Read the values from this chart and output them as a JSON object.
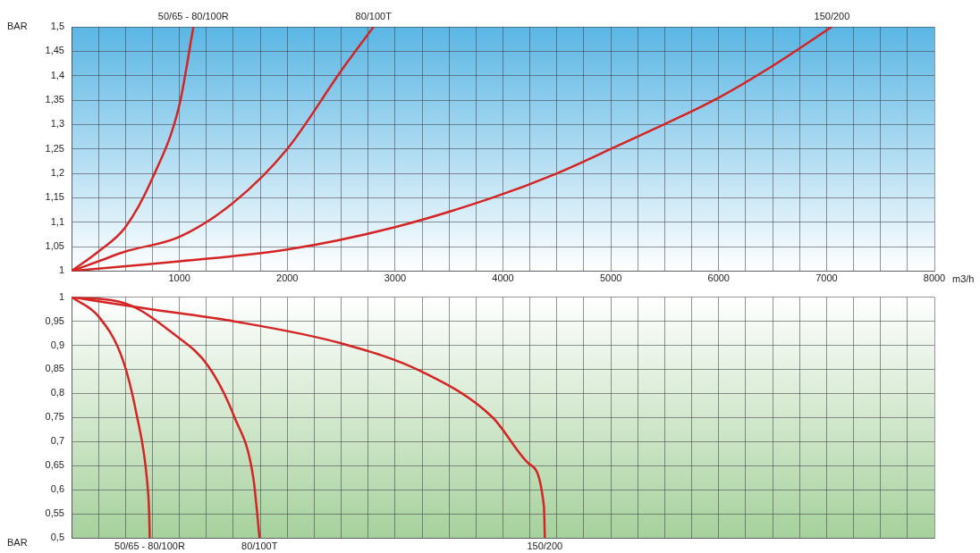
{
  "chart_data": [
    {
      "type": "line",
      "xlabel": "m3/h",
      "ylabel": "BAR",
      "xlim": [
        0,
        8000
      ],
      "ylim": [
        1,
        1.5
      ],
      "grid": true,
      "legend": false,
      "marker": "none",
      "line_style": "solid",
      "xticks": [
        {
          "value": 0,
          "label": null
        },
        {
          "value": 250,
          "label": null
        },
        {
          "value": 500,
          "label": null
        },
        {
          "value": 750,
          "label": null
        },
        1000,
        {
          "value": 1250,
          "label": null
        },
        {
          "value": 1500,
          "label": null
        },
        {
          "value": 1750,
          "label": null
        },
        2000,
        {
          "value": 2250,
          "label": null
        },
        {
          "value": 2500,
          "label": null
        },
        {
          "value": 2750,
          "label": null
        },
        3000,
        {
          "value": 3250,
          "label": null
        },
        {
          "value": 3500,
          "label": null
        },
        {
          "value": 3750,
          "label": null
        },
        4000,
        {
          "value": 4250,
          "label": null
        },
        {
          "value": 4500,
          "label": null
        },
        {
          "value": 4750,
          "label": null
        },
        5000,
        {
          "value": 5250,
          "label": null
        },
        {
          "value": 5500,
          "label": null
        },
        {
          "value": 5750,
          "label": null
        },
        6000,
        {
          "value": 6250,
          "label": null
        },
        {
          "value": 6500,
          "label": null
        },
        {
          "value": 6750,
          "label": null
        },
        7000,
        {
          "value": 7250,
          "label": null
        },
        {
          "value": 7500,
          "label": null
        },
        {
          "value": 7750,
          "label": null
        },
        8000
      ],
      "yticks": [
        1,
        {
          "value": 1.05,
          "label": "1,05"
        },
        {
          "value": 1.1,
          "label": "1,1"
        },
        {
          "value": 1.15,
          "label": "1,15"
        },
        {
          "value": 1.2,
          "label": "1,2"
        },
        {
          "value": 1.25,
          "label": "1,25"
        },
        {
          "value": 1.3,
          "label": "1,3"
        },
        {
          "value": 1.35,
          "label": "1,35"
        },
        {
          "value": 1.4,
          "label": "1,4"
        },
        {
          "value": 1.45,
          "label": "1,45"
        },
        {
          "value": 1.5,
          "label": "1,5"
        }
      ],
      "series": [
        {
          "name": "50/65 - 80/100R",
          "color": "#d42424",
          "x": [
            0,
            250,
            500,
            750,
            1000,
            1130
          ],
          "values": [
            1,
            1.04,
            1.09,
            1.19,
            1.34,
            1.5
          ]
        },
        {
          "name": "80/100T",
          "color": "#d42424",
          "x": [
            0,
            250,
            500,
            1000,
            1500,
            2000,
            2500,
            2800
          ],
          "values": [
            1,
            1.02,
            1.04,
            1.07,
            1.14,
            1.25,
            1.41,
            1.5
          ]
        },
        {
          "name": "150/200",
          "color": "#d42424",
          "x": [
            0,
            500,
            1000,
            2000,
            3000,
            3900,
            4500,
            5000,
            6000,
            6500,
            7050
          ],
          "values": [
            1,
            1.01,
            1.02,
            1.044,
            1.09,
            1.15,
            1.2,
            1.25,
            1.355,
            1.42,
            1.5
          ]
        }
      ]
    },
    {
      "type": "line",
      "ylabel": "BAR",
      "xlim": [
        0,
        8000
      ],
      "ylim": [
        0.5,
        1
      ],
      "grid": true,
      "legend": false,
      "marker": "none",
      "line_style": "solid",
      "tick_labels": "y",
      "xticks": [
        {
          "value": 0,
          "label": null
        },
        {
          "value": 250,
          "label": null
        },
        {
          "value": 500,
          "label": null
        },
        {
          "value": 750,
          "label": null
        },
        {
          "value": 1000,
          "label": null
        },
        {
          "value": 1250,
          "label": null
        },
        {
          "value": 1500,
          "label": null
        },
        {
          "value": 1750,
          "label": null
        },
        {
          "value": 2000,
          "label": null
        },
        {
          "value": 2250,
          "label": null
        },
        {
          "value": 2500,
          "label": null
        },
        {
          "value": 2750,
          "label": null
        },
        {
          "value": 3000,
          "label": null
        },
        {
          "value": 3250,
          "label": null
        },
        {
          "value": 3500,
          "label": null
        },
        {
          "value": 3750,
          "label": null
        },
        {
          "value": 4000,
          "label": null
        },
        {
          "value": 4250,
          "label": null
        },
        {
          "value": 4500,
          "label": null
        },
        {
          "value": 4750,
          "label": null
        },
        {
          "value": 5000,
          "label": null
        },
        {
          "value": 5250,
          "label": null
        },
        {
          "value": 5500,
          "label": null
        },
        {
          "value": 5750,
          "label": null
        },
        {
          "value": 6000,
          "label": null
        },
        {
          "value": 6250,
          "label": null
        },
        {
          "value": 6500,
          "label": null
        },
        {
          "value": 6750,
          "label": null
        },
        {
          "value": 7000,
          "label": null
        },
        {
          "value": 7250,
          "label": null
        },
        {
          "value": 7500,
          "label": null
        },
        {
          "value": 7750,
          "label": null
        },
        {
          "value": 8000,
          "label": null
        }
      ],
      "yticks": [
        {
          "value": 0.5,
          "label": "0,5"
        },
        {
          "value": 0.55,
          "label": "0,55"
        },
        {
          "value": 0.6,
          "label": "0,6"
        },
        {
          "value": 0.65,
          "label": "0,65"
        },
        {
          "value": 0.7,
          "label": "0,7"
        },
        {
          "value": 0.75,
          "label": "0,75"
        },
        {
          "value": 0.8,
          "label": "0,8"
        },
        {
          "value": 0.85,
          "label": "0,85"
        },
        {
          "value": 0.9,
          "label": "0,9"
        },
        {
          "value": 0.95,
          "label": "0,95"
        },
        1
      ],
      "series": [
        {
          "name": "50/65 - 80/100R",
          "color": "#d42424",
          "x": [
            0,
            250,
            475,
            600,
            700,
            720,
            725
          ],
          "values": [
            1,
            0.96,
            0.87,
            0.76,
            0.62,
            0.55,
            0.5
          ]
        },
        {
          "name": "80/100T",
          "color": "#d42424",
          "x": [
            0,
            500,
            950,
            1270,
            1510,
            1685,
            1743
          ],
          "values": [
            1,
            0.987,
            0.923,
            0.856,
            0.751,
            0.625,
            0.5
          ]
        },
        {
          "name": "150/200",
          "color": "#d42424",
          "x": [
            0,
            700,
            1500,
            2500,
            3250,
            3900,
            4240,
            4380,
            4388
          ],
          "values": [
            1,
            0.976,
            0.95,
            0.904,
            0.845,
            0.751,
            0.654,
            0.565,
            0.5
          ]
        }
      ]
    }
  ]
}
